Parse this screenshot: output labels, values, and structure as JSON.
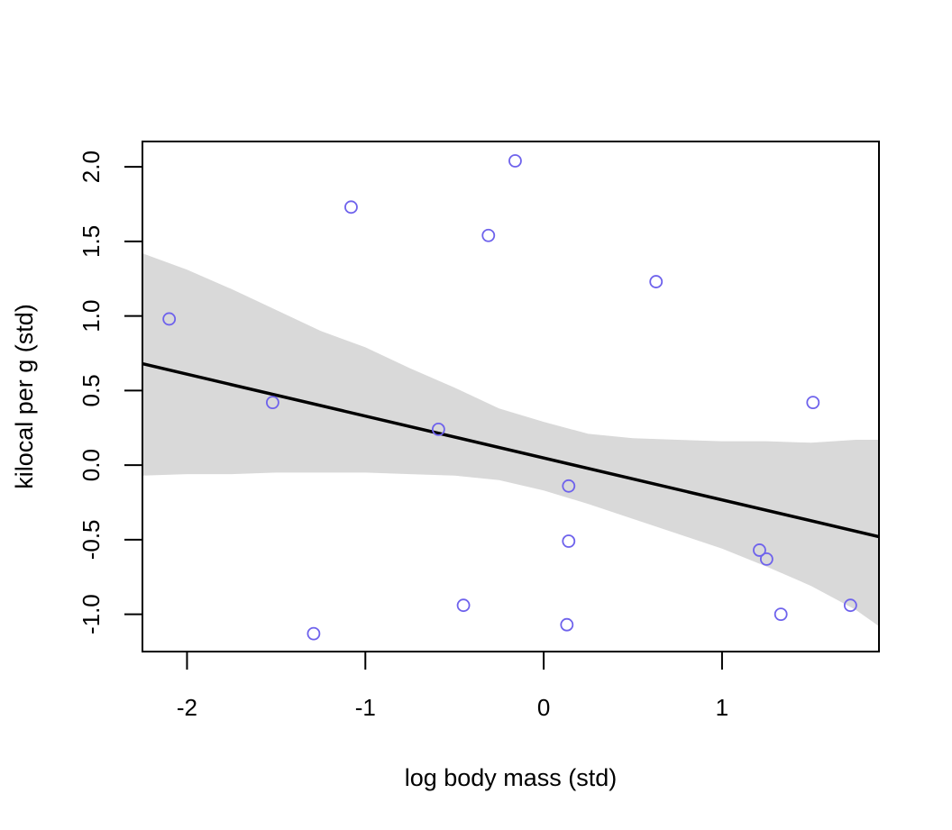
{
  "chart_data": {
    "type": "scatter",
    "title": "",
    "xlabel": "log body mass (std)",
    "ylabel": "kilocal per g (std)",
    "xlim": [
      -2.25,
      1.88
    ],
    "ylim": [
      -1.25,
      2.17
    ],
    "x_ticks": [
      {
        "value": -2,
        "label": "-2"
      },
      {
        "value": -1,
        "label": "-1"
      },
      {
        "value": 0,
        "label": "0"
      },
      {
        "value": 1,
        "label": "1"
      }
    ],
    "y_ticks": [
      {
        "value": -1.0,
        "label": "-1.0"
      },
      {
        "value": -0.5,
        "label": "-0.5"
      },
      {
        "value": 0.0,
        "label": "0.0"
      },
      {
        "value": 0.5,
        "label": "0.5"
      },
      {
        "value": 1.0,
        "label": "1.0"
      },
      {
        "value": 1.5,
        "label": "1.5"
      },
      {
        "value": 2.0,
        "label": "2.0"
      }
    ],
    "grid": false,
    "points": [
      {
        "x": -2.1,
        "y": 0.98
      },
      {
        "x": -1.52,
        "y": 0.42
      },
      {
        "x": -1.29,
        "y": -1.13
      },
      {
        "x": -1.08,
        "y": 1.73
      },
      {
        "x": -0.59,
        "y": 0.24
      },
      {
        "x": -0.45,
        "y": -0.94
      },
      {
        "x": -0.31,
        "y": 1.54
      },
      {
        "x": -0.16,
        "y": 2.04
      },
      {
        "x": 0.13,
        "y": -1.07
      },
      {
        "x": 0.14,
        "y": -0.14
      },
      {
        "x": 0.14,
        "y": -0.51
      },
      {
        "x": 0.63,
        "y": 1.23
      },
      {
        "x": 1.21,
        "y": -0.57
      },
      {
        "x": 1.25,
        "y": -0.63
      },
      {
        "x": 1.33,
        "y": -1.0
      },
      {
        "x": 1.51,
        "y": 0.42
      },
      {
        "x": 1.72,
        "y": -0.94
      }
    ],
    "mean_line": {
      "x": [
        -2.25,
        1.88
      ],
      "y": [
        0.68,
        -0.48
      ]
    },
    "interval": {
      "x": [
        -2.25,
        -2.0,
        -1.75,
        -1.5,
        -1.25,
        -1.0,
        -0.75,
        -0.5,
        -0.25,
        0.0,
        0.25,
        0.5,
        0.75,
        1.0,
        1.25,
        1.5,
        1.75,
        1.88
      ],
      "upper": [
        1.42,
        1.31,
        1.18,
        1.04,
        0.9,
        0.79,
        0.65,
        0.52,
        0.38,
        0.29,
        0.21,
        0.18,
        0.17,
        0.16,
        0.16,
        0.15,
        0.17,
        0.17
      ],
      "lower": [
        -0.07,
        -0.06,
        -0.06,
        -0.05,
        -0.05,
        -0.05,
        -0.06,
        -0.07,
        -0.1,
        -0.17,
        -0.26,
        -0.36,
        -0.46,
        -0.56,
        -0.68,
        -0.81,
        -0.97,
        -1.08
      ]
    },
    "colors": {
      "points": "#6e62ec",
      "line": "#000000",
      "interval": "#d9d9d9",
      "axis": "#000000"
    }
  }
}
